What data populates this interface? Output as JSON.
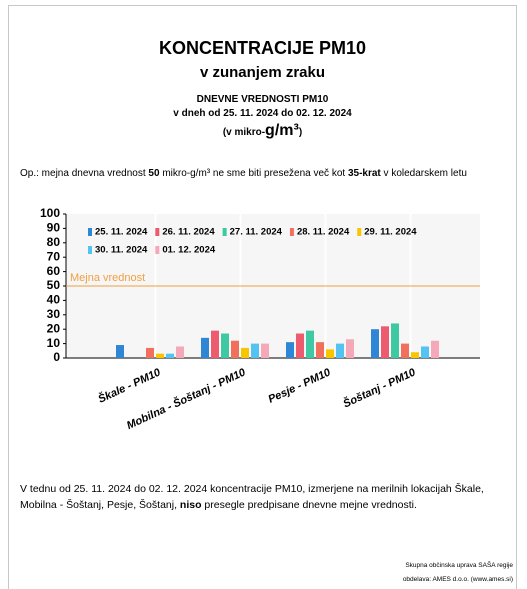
{
  "header": {
    "title": "KONCENTRACIJE PM10",
    "subtitle": "v zunanjem zraku",
    "heading": "DNEVNE VREDNOSTI PM10",
    "period": "v dneh od 25. 11. 2024 do 02. 12. 2024",
    "units": [
      "(v mikro-",
      "g/m³",
      ")"
    ]
  },
  "note": [
    "Op.: mejna dnevna vrednost ",
    "50",
    " mikro-g/m³ ne sme biti presežena več kot ",
    "35-krat",
    " v koledarskem letu"
  ],
  "chart_data": {
    "type": "bar",
    "categories": [
      "Škale - PM10",
      "Mobilna - Šoštanj - PM10",
      "Pesje - PM10",
      "Šoštanj - PM10"
    ],
    "series": [
      {
        "name": "25. 11. 2024",
        "color": "#2e86d4",
        "values": [
          9,
          14,
          11,
          20
        ]
      },
      {
        "name": "26. 11. 2024",
        "color": "#ec5b6e",
        "values": [
          null,
          19,
          17,
          22
        ]
      },
      {
        "name": "27. 11. 2024",
        "color": "#3fc9a3",
        "values": [
          null,
          17,
          19,
          24
        ]
      },
      {
        "name": "28. 11. 2024",
        "color": "#f0705c",
        "values": [
          7,
          12,
          11,
          10
        ]
      },
      {
        "name": "29. 11. 2024",
        "color": "#f7c600",
        "values": [
          3,
          7,
          6,
          4
        ]
      },
      {
        "name": "30. 11. 2024",
        "color": "#55c3f2",
        "values": [
          3,
          10,
          10,
          8
        ]
      },
      {
        "name": "01. 12. 2024",
        "color": "#f5a9b8",
        "values": [
          8,
          10,
          13,
          12
        ]
      }
    ],
    "ylim": [
      0,
      100
    ],
    "yticks": [
      0,
      10,
      20,
      30,
      40,
      50,
      60,
      70,
      80,
      90,
      100
    ],
    "limit": {
      "value": 50,
      "label": "Mejna vrednost",
      "color": "#f0a040"
    },
    "legend": "top-left"
  },
  "summary": [
    "V tednu od 25. 11. 2024 do 02. 12. 2024 koncentracije PM10, izmerjene na merilnih lokacijah Škale, Mobilna - Šoštanj, Pesje, Šoštanj, ",
    "niso",
    " presegle predpisane dnevne mejne vrednosti."
  ],
  "footer": [
    "Skupna občinska uprava SAŠA regije",
    "obdelava: AMES d.o.o. (www.ames.si)"
  ]
}
